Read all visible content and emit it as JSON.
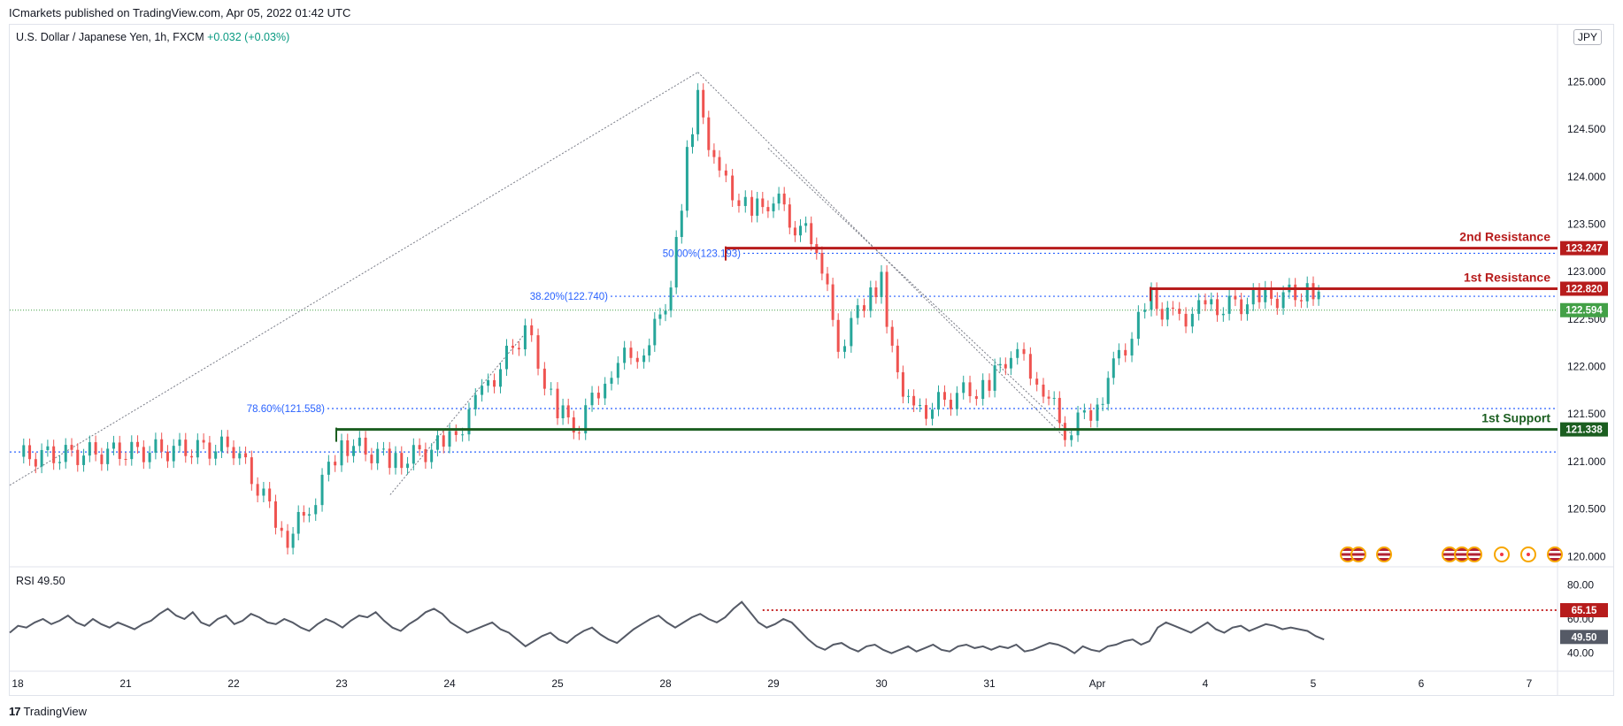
{
  "publisher": "ICmarkets published on TradingView.com, Apr 05, 2022 01:42 UTC",
  "symbol": {
    "name": "U.S. Dollar / Japanese Yen, 1h, FXCM",
    "change": "+0.032 (+0.03%)"
  },
  "currency_badge": "JPY",
  "rsi_label": "RSI  49.50",
  "footer": {
    "logo": "17",
    "brand": "TradingView"
  },
  "colors": {
    "up": "#26a69a",
    "down": "#ef5350",
    "resistance": "#b71c1c",
    "support": "#1b5e20",
    "fib": "#2962ff",
    "last": "#43a047"
  },
  "chart_data": [
    {
      "type": "line",
      "name": "USDJPY price (approximate path)",
      "ylim": [
        119.9,
        125.6
      ],
      "x_ticks": [
        "18",
        "21",
        "22",
        "23",
        "24",
        "25",
        "28",
        "29",
        "30",
        "31",
        "Apr",
        "4",
        "5",
        "6",
        "7"
      ],
      "y_ticks": [
        "125.000",
        "124.500",
        "124.000",
        "123.500",
        "123.000",
        "122.500",
        "122.000",
        "121.500",
        "121.000",
        "120.500",
        "120.000"
      ],
      "path_points": [
        [
          0,
          121.05
        ],
        [
          1,
          121.1
        ],
        [
          2,
          121.15
        ],
        [
          2.5,
          120.2
        ],
        [
          2.7,
          120.5
        ],
        [
          3,
          121.2
        ],
        [
          3.5,
          121.0
        ],
        [
          4,
          121.2
        ],
        [
          4.3,
          121.7
        ],
        [
          4.7,
          122.4
        ],
        [
          5,
          121.5
        ],
        [
          5.2,
          121.4
        ],
        [
          5.5,
          122.0
        ],
        [
          5.8,
          122.2
        ],
        [
          6.0,
          122.6
        ],
        [
          6.1,
          123.3
        ],
        [
          6.2,
          124.2
        ],
        [
          6.3,
          124.8
        ],
        [
          6.5,
          124.0
        ],
        [
          6.8,
          123.6
        ],
        [
          7.0,
          123.8
        ],
        [
          7.2,
          123.5
        ],
        [
          7.4,
          123.3
        ],
        [
          7.6,
          122.2
        ],
        [
          7.9,
          122.8
        ],
        [
          8.0,
          122.9
        ],
        [
          8.1,
          122.1
        ],
        [
          8.3,
          121.5
        ],
        [
          8.7,
          121.7
        ],
        [
          9.0,
          121.8
        ],
        [
          9.2,
          122.2
        ],
        [
          9.5,
          121.8
        ],
        [
          9.7,
          121.3
        ],
        [
          10.0,
          121.6
        ],
        [
          10.2,
          122.1
        ],
        [
          10.5,
          122.7
        ],
        [
          10.7,
          122.5
        ],
        [
          11.0,
          122.6
        ],
        [
          11.5,
          122.7
        ],
        [
          12.0,
          122.8
        ],
        [
          12.1,
          122.6
        ]
      ],
      "last_price": 122.594,
      "fib_levels": [
        {
          "label": "50.00%(123.193)",
          "value": 123.193
        },
        {
          "label": "38.20%(122.740)",
          "value": 122.74
        },
        {
          "label": "78.60%(121.558)",
          "value": 121.558
        }
      ],
      "levels": [
        {
          "label": "2nd Resistance",
          "value": 123.247,
          "value_text": "123.247",
          "color": "#b71c1c"
        },
        {
          "label": "1st Resistance",
          "value": 122.82,
          "value_text": "122.820",
          "color": "#b71c1c"
        },
        {
          "label": "1st Support",
          "value": 121.338,
          "value_text": "121.338",
          "color": "#1b5e20"
        }
      ],
      "extra_dotted_line": 121.1,
      "last_value_text": "122.594"
    },
    {
      "type": "line",
      "name": "RSI",
      "ylim": [
        30,
        90
      ],
      "y_ticks": [
        "80.00",
        "60.00",
        "40.00"
      ],
      "values": [
        52,
        56,
        55,
        58,
        60,
        57,
        59,
        62,
        58,
        56,
        60,
        57,
        55,
        58,
        56,
        54,
        57,
        59,
        63,
        66,
        62,
        60,
        64,
        58,
        56,
        60,
        62,
        57,
        59,
        63,
        61,
        58,
        57,
        60,
        58,
        55,
        53,
        57,
        60,
        58,
        55,
        59,
        62,
        61,
        64,
        59,
        55,
        53,
        57,
        60,
        64,
        66,
        63,
        58,
        55,
        52,
        54,
        56,
        58,
        54,
        52,
        48,
        44,
        47,
        50,
        52,
        48,
        46,
        50,
        53,
        55,
        51,
        48,
        46,
        50,
        54,
        57,
        60,
        62,
        58,
        55,
        58,
        61,
        63,
        60,
        58,
        61,
        66,
        70,
        64,
        58,
        55,
        57,
        60,
        58,
        53,
        48,
        44,
        42,
        45,
        46,
        43,
        41,
        44,
        45,
        42,
        40,
        42,
        44,
        41,
        43,
        45,
        42,
        41,
        44,
        45,
        43,
        44,
        42,
        44,
        43,
        45,
        41,
        42,
        44,
        46,
        45,
        43,
        40,
        44,
        42,
        41,
        44,
        45,
        47,
        48,
        45,
        47,
        55,
        58,
        56,
        54,
        52,
        55,
        58,
        54,
        52,
        55,
        56,
        53,
        55,
        57,
        56,
        54,
        55,
        54,
        53,
        50,
        48
      ],
      "current": 49.5,
      "current_text": "49.50",
      "level": 65.15,
      "level_text": "65.15"
    }
  ]
}
